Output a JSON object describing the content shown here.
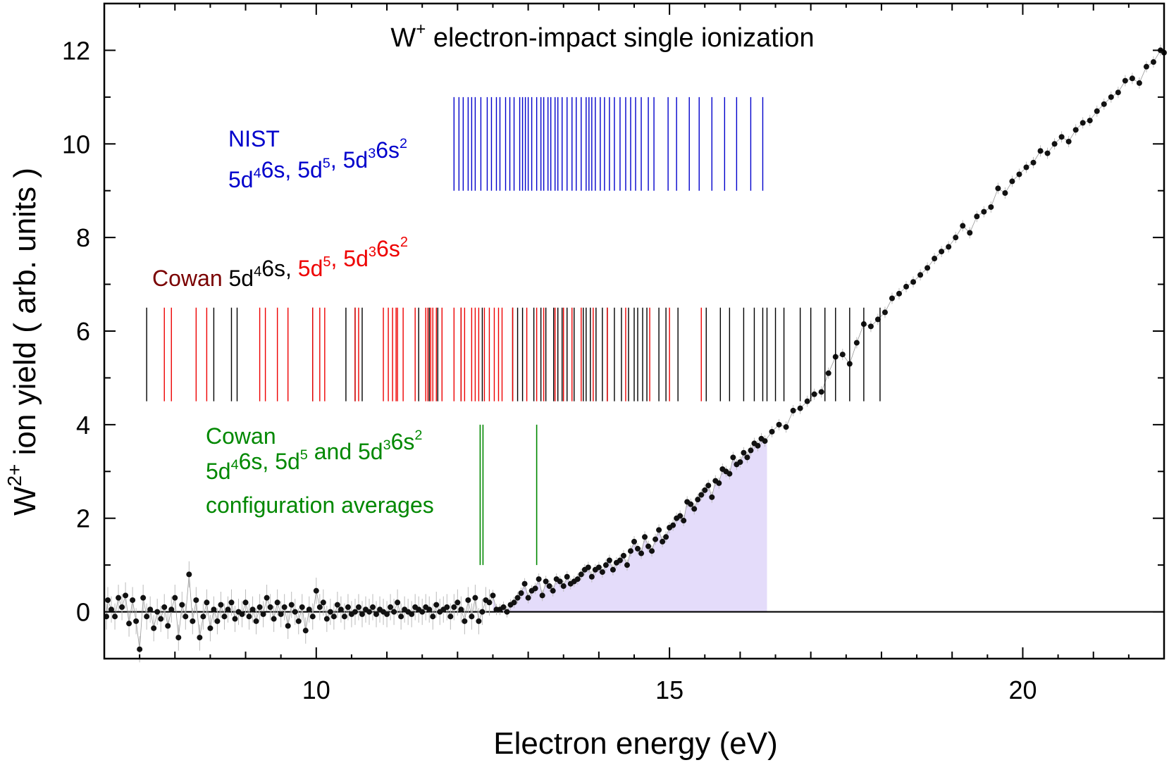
{
  "chart_data": {
    "type": "scatter",
    "title_base": "W",
    "title_sup": "+",
    "title_rest": " electron-impact  single ionization",
    "xlabel": "Electron energy (eV)",
    "ylabel_base": "W",
    "ylabel_sup": "2+",
    "ylabel_rest": " ion yield  ( arb. units )",
    "xlim": [
      7,
      22
    ],
    "ylim": [
      -1,
      13
    ],
    "x_ticks": [
      10,
      15,
      20
    ],
    "y_ticks": [
      0,
      2,
      4,
      6,
      8,
      10,
      12
    ],
    "x_tick_labels": [
      "10",
      "15",
      "20"
    ],
    "y_tick_labels": [
      "0",
      "2",
      "4",
      "6",
      "8",
      "10",
      "12"
    ],
    "colors": {
      "data": "#111111",
      "nist": "#0000cc",
      "cowan_black": "#000000",
      "cowan_red": "#ee0000",
      "cowan_name": "#7a0000",
      "average": "#008800",
      "fill": "#e4dcfa"
    },
    "legend_nist": {
      "title": "NIST",
      "configs": [
        {
          "parts": [
            [
              "5d",
              "4"
            ],
            [
              "6s",
              ""
            ]
          ],
          "sep": ", "
        },
        {
          "parts": [
            [
              "5d",
              "5"
            ]
          ],
          "sep": ", "
        },
        {
          "parts": [
            [
              "5d",
              "3"
            ],
            [
              "6s",
              "2"
            ]
          ],
          "sep": ""
        }
      ]
    },
    "legend_cowan": {
      "name": "Cowan",
      "black_part": [
        [
          "5d",
          "4"
        ],
        [
          "6s,",
          ""
        ]
      ],
      "red_part": [
        [
          "5d",
          "5"
        ],
        [
          ", 5d",
          "3"
        ],
        [
          "6s",
          "2"
        ]
      ]
    },
    "legend_average": {
      "line1": "Cowan",
      "line2_parts": [
        [
          "5d",
          "4"
        ],
        [
          "6s, 5d",
          "5"
        ],
        [
          " and 5d",
          "3"
        ],
        [
          "6s",
          "2"
        ]
      ],
      "line3": "configuration averages"
    },
    "nist_lines": {
      "y_range": [
        9.0,
        11.0
      ],
      "x": [
        11.95,
        12.02,
        12.08,
        12.15,
        12.2,
        12.25,
        12.33,
        12.42,
        12.48,
        12.55,
        12.6,
        12.68,
        12.74,
        12.8,
        12.88,
        12.92,
        12.96,
        13.0,
        13.05,
        13.12,
        13.18,
        13.22,
        13.28,
        13.32,
        13.38,
        13.42,
        13.48,
        13.55,
        13.62,
        13.68,
        13.75,
        13.82,
        13.86,
        13.9,
        13.95,
        14.02,
        14.08,
        14.15,
        14.22,
        14.3,
        14.38,
        14.45,
        14.52,
        14.6,
        14.7,
        14.78,
        14.98,
        15.1,
        15.28,
        15.42,
        15.6,
        15.78,
        15.95,
        16.15,
        16.32
      ]
    },
    "cowan_black_lines": {
      "y_range": [
        4.5,
        6.5
      ],
      "x": [
        7.6,
        8.55,
        8.8,
        8.88,
        9.95,
        10.42,
        10.55,
        10.65,
        11.45,
        11.6,
        11.72,
        12.05,
        12.35,
        12.78,
        12.85,
        12.92,
        13.08,
        13.18,
        13.25,
        13.36,
        13.42,
        13.48,
        13.55,
        13.65,
        13.78,
        13.82,
        13.88,
        13.96,
        14.05,
        14.12,
        14.22,
        14.32,
        14.42,
        14.5,
        14.55,
        14.62,
        14.68,
        14.85,
        14.95,
        15.12,
        15.52,
        15.72,
        15.85,
        16.05,
        16.2,
        16.32,
        16.38,
        16.5,
        16.62,
        16.85,
        17.0,
        17.2,
        17.35,
        17.55,
        17.75,
        17.98
      ]
    },
    "cowan_red_lines": {
      "y_range": [
        4.5,
        6.5
      ],
      "x": [
        7.85,
        7.95,
        8.3,
        8.45,
        9.2,
        9.28,
        9.45,
        9.6,
        9.95,
        10.05,
        10.12,
        10.55,
        10.6,
        10.95,
        11.02,
        11.08,
        11.13,
        11.15,
        11.23,
        11.4,
        11.55,
        11.58,
        11.62,
        11.65,
        11.7,
        11.78,
        11.95,
        12.05,
        12.1,
        12.2,
        12.25,
        12.3,
        12.38,
        12.45,
        12.52,
        12.58,
        12.63,
        12.78,
        12.98,
        13.12,
        13.22,
        13.38,
        13.5,
        13.62,
        13.75,
        13.92,
        14.12,
        14.38,
        14.72,
        15.0,
        15.45
      ]
    },
    "average_lines": {
      "y_range": [
        1.0,
        4.0
      ],
      "x": [
        12.32,
        12.36,
        13.12
      ]
    },
    "shaded_range": {
      "x_end": 16.38
    },
    "series": [
      {
        "name": "measured",
        "points": [
          [
            7.03,
            -0.1
          ],
          [
            7.05,
            0.25
          ],
          [
            7.1,
            0.05
          ],
          [
            7.15,
            -0.1
          ],
          [
            7.2,
            0.3
          ],
          [
            7.25,
            0.1
          ],
          [
            7.3,
            0.35
          ],
          [
            7.35,
            -0.25
          ],
          [
            7.4,
            0.25
          ],
          [
            7.45,
            -0.2
          ],
          [
            7.5,
            -0.8
          ],
          [
            7.55,
            0.3
          ],
          [
            7.6,
            -0.1
          ],
          [
            7.65,
            0.05
          ],
          [
            7.7,
            -0.35
          ],
          [
            7.75,
            0.0
          ],
          [
            7.8,
            -0.15
          ],
          [
            7.85,
            0.1
          ],
          [
            7.9,
            -0.3
          ],
          [
            7.95,
            0.05
          ],
          [
            8.0,
            0.3
          ],
          [
            8.05,
            -0.55
          ],
          [
            8.1,
            0.15
          ],
          [
            8.15,
            -0.1
          ],
          [
            8.2,
            0.8
          ],
          [
            8.25,
            -0.2
          ],
          [
            8.3,
            0.25
          ],
          [
            8.35,
            -0.55
          ],
          [
            8.4,
            -0.1
          ],
          [
            8.45,
            0.2
          ],
          [
            8.5,
            -0.35
          ],
          [
            8.55,
            0.05
          ],
          [
            8.6,
            -0.2
          ],
          [
            8.65,
            0.15
          ],
          [
            8.7,
            -0.1
          ],
          [
            8.75,
            0.05
          ],
          [
            8.8,
            0.2
          ],
          [
            8.85,
            -0.15
          ],
          [
            8.9,
            0.0
          ],
          [
            8.95,
            -0.05
          ],
          [
            9.0,
            0.2
          ],
          [
            9.05,
            -0.1
          ],
          [
            9.1,
            0.05
          ],
          [
            9.15,
            -0.2
          ],
          [
            9.2,
            0.1
          ],
          [
            9.25,
            -0.05
          ],
          [
            9.3,
            0.3
          ],
          [
            9.35,
            0.1
          ],
          [
            9.4,
            -0.15
          ],
          [
            9.45,
            0.2
          ],
          [
            9.5,
            -0.05
          ],
          [
            9.55,
            0.1
          ],
          [
            9.6,
            -0.3
          ],
          [
            9.65,
            0.15
          ],
          [
            9.7,
            0.0
          ],
          [
            9.75,
            -0.2
          ],
          [
            9.8,
            0.1
          ],
          [
            9.85,
            -0.4
          ],
          [
            9.9,
            0.05
          ],
          [
            9.95,
            -0.1
          ],
          [
            10.0,
            0.45
          ],
          [
            10.05,
            0.1
          ],
          [
            10.1,
            0.2
          ],
          [
            10.15,
            -0.15
          ],
          [
            10.2,
            0.0
          ],
          [
            10.25,
            -0.1
          ],
          [
            10.3,
            0.15
          ],
          [
            10.35,
            0.05
          ],
          [
            10.4,
            -0.1
          ],
          [
            10.45,
            0.1
          ],
          [
            10.5,
            -0.05
          ],
          [
            10.55,
            0.0
          ],
          [
            10.6,
            0.1
          ],
          [
            10.65,
            -0.05
          ],
          [
            10.7,
            0.05
          ],
          [
            10.75,
            0.0
          ],
          [
            10.8,
            0.1
          ],
          [
            10.85,
            -0.05
          ],
          [
            10.9,
            0.05
          ],
          [
            10.95,
            0.0
          ],
          [
            11.0,
            -0.05
          ],
          [
            11.05,
            0.1
          ],
          [
            11.1,
            0.0
          ],
          [
            11.15,
            0.2
          ],
          [
            11.2,
            -0.1
          ],
          [
            11.25,
            0.05
          ],
          [
            11.3,
            0.0
          ],
          [
            11.35,
            -0.05
          ],
          [
            11.4,
            0.1
          ],
          [
            11.45,
            0.05
          ],
          [
            11.5,
            0.0
          ],
          [
            11.55,
            0.1
          ],
          [
            11.6,
            0.05
          ],
          [
            11.65,
            -0.1
          ],
          [
            11.7,
            0.15
          ],
          [
            11.75,
            0.0
          ],
          [
            11.8,
            0.05
          ],
          [
            11.85,
            0.1
          ],
          [
            11.9,
            -0.1
          ],
          [
            11.95,
            0.1
          ],
          [
            12.0,
            0.2
          ],
          [
            12.05,
            0.05
          ],
          [
            12.1,
            -0.2
          ],
          [
            12.15,
            0.25
          ],
          [
            12.2,
            -0.1
          ],
          [
            12.25,
            0.3
          ],
          [
            12.3,
            -0.2
          ],
          [
            12.35,
            0.0
          ],
          [
            12.4,
            0.25
          ],
          [
            12.45,
            0.2
          ],
          [
            12.5,
            0.35
          ],
          [
            12.55,
            0.05
          ],
          [
            12.6,
            0.05
          ],
          [
            12.65,
            0.1
          ],
          [
            12.7,
            0.0
          ],
          [
            12.75,
            0.15
          ],
          [
            12.8,
            0.2
          ],
          [
            12.85,
            0.3
          ],
          [
            12.9,
            0.4
          ],
          [
            12.95,
            0.6
          ],
          [
            13.0,
            0.3
          ],
          [
            13.05,
            0.45
          ],
          [
            13.1,
            0.5
          ],
          [
            13.15,
            0.7
          ],
          [
            13.2,
            0.35
          ],
          [
            13.25,
            0.65
          ],
          [
            13.3,
            0.55
          ],
          [
            13.35,
            0.45
          ],
          [
            13.4,
            0.7
          ],
          [
            13.45,
            0.65
          ],
          [
            13.5,
            0.55
          ],
          [
            13.55,
            0.75
          ],
          [
            13.6,
            0.6
          ],
          [
            13.65,
            0.65
          ],
          [
            13.7,
            0.7
          ],
          [
            13.75,
            0.8
          ],
          [
            13.8,
            0.9
          ],
          [
            13.85,
            0.95
          ],
          [
            13.9,
            0.75
          ],
          [
            13.95,
            0.9
          ],
          [
            14.0,
            0.95
          ],
          [
            14.05,
            0.85
          ],
          [
            14.1,
            1.0
          ],
          [
            14.15,
            1.1
          ],
          [
            14.2,
            0.9
          ],
          [
            14.25,
            1.05
          ],
          [
            14.3,
            1.1
          ],
          [
            14.35,
            1.2
          ],
          [
            14.4,
            1.0
          ],
          [
            14.45,
            1.3
          ],
          [
            14.5,
            1.5
          ],
          [
            14.55,
            1.35
          ],
          [
            14.6,
            1.25
          ],
          [
            14.65,
            1.6
          ],
          [
            14.7,
            1.4
          ],
          [
            14.75,
            1.3
          ],
          [
            14.8,
            1.55
          ],
          [
            14.85,
            1.75
          ],
          [
            14.9,
            1.5
          ],
          [
            14.95,
            1.6
          ],
          [
            15.0,
            1.8
          ],
          [
            15.05,
            1.85
          ],
          [
            15.1,
            2.0
          ],
          [
            15.15,
            2.05
          ],
          [
            15.2,
            1.95
          ],
          [
            15.25,
            2.35
          ],
          [
            15.3,
            2.3
          ],
          [
            15.35,
            2.2
          ],
          [
            15.4,
            2.4
          ],
          [
            15.45,
            2.5
          ],
          [
            15.5,
            2.6
          ],
          [
            15.55,
            2.7
          ],
          [
            15.6,
            2.45
          ],
          [
            15.65,
            2.8
          ],
          [
            15.7,
            2.75
          ],
          [
            15.75,
            3.05
          ],
          [
            15.8,
            3.0
          ],
          [
            15.85,
            2.95
          ],
          [
            15.9,
            3.3
          ],
          [
            15.95,
            3.15
          ],
          [
            16.0,
            3.2
          ],
          [
            16.05,
            3.4
          ],
          [
            16.1,
            3.3
          ],
          [
            16.15,
            3.45
          ],
          [
            16.2,
            3.6
          ],
          [
            16.25,
            3.55
          ],
          [
            16.3,
            3.7
          ],
          [
            16.35,
            3.65
          ],
          [
            16.45,
            3.85
          ],
          [
            16.55,
            4.0
          ],
          [
            16.65,
            3.95
          ],
          [
            16.75,
            4.3
          ],
          [
            16.85,
            4.35
          ],
          [
            16.95,
            4.5
          ],
          [
            17.05,
            4.65
          ],
          [
            17.15,
            4.7
          ],
          [
            17.25,
            5.1
          ],
          [
            17.35,
            5.45
          ],
          [
            17.45,
            5.5
          ],
          [
            17.55,
            5.3
          ],
          [
            17.65,
            5.75
          ],
          [
            17.75,
            6.15
          ],
          [
            17.85,
            6.1
          ],
          [
            17.95,
            6.25
          ],
          [
            18.05,
            6.4
          ],
          [
            18.15,
            6.7
          ],
          [
            18.25,
            6.8
          ],
          [
            18.35,
            6.95
          ],
          [
            18.45,
            7.05
          ],
          [
            18.55,
            7.2
          ],
          [
            18.65,
            7.35
          ],
          [
            18.75,
            7.55
          ],
          [
            18.85,
            7.7
          ],
          [
            18.95,
            7.8
          ],
          [
            19.05,
            8.0
          ],
          [
            19.15,
            8.25
          ],
          [
            19.25,
            8.1
          ],
          [
            19.35,
            8.45
          ],
          [
            19.45,
            8.55
          ],
          [
            19.55,
            8.65
          ],
          [
            19.65,
            9.05
          ],
          [
            19.75,
            8.95
          ],
          [
            19.85,
            9.2
          ],
          [
            19.95,
            9.35
          ],
          [
            20.05,
            9.5
          ],
          [
            20.15,
            9.6
          ],
          [
            20.25,
            9.85
          ],
          [
            20.35,
            9.8
          ],
          [
            20.45,
            10.0
          ],
          [
            20.55,
            10.15
          ],
          [
            20.65,
            10.05
          ],
          [
            20.75,
            10.3
          ],
          [
            20.85,
            10.45
          ],
          [
            20.95,
            10.5
          ],
          [
            21.05,
            10.7
          ],
          [
            21.15,
            10.85
          ],
          [
            21.25,
            11.0
          ],
          [
            21.35,
            11.1
          ],
          [
            21.45,
            11.35
          ],
          [
            21.55,
            11.4
          ],
          [
            21.65,
            11.3
          ],
          [
            21.75,
            11.65
          ],
          [
            21.85,
            11.75
          ],
          [
            21.95,
            12.0
          ],
          [
            22.0,
            11.95
          ]
        ]
      }
    ]
  }
}
